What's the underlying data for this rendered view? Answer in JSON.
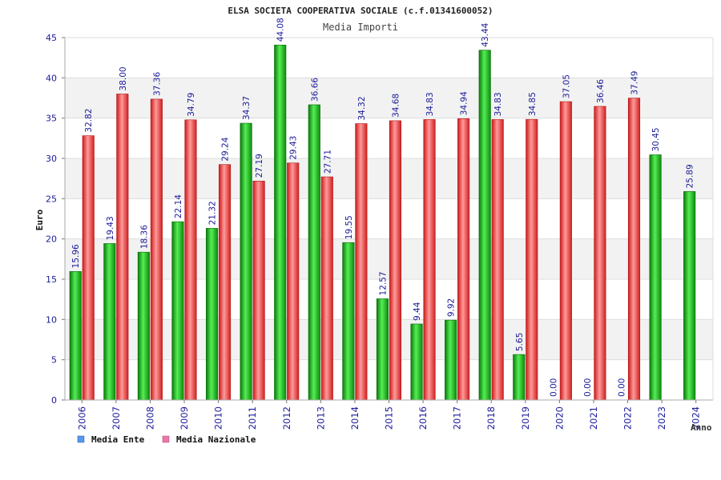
{
  "chart_data": {
    "type": "bar",
    "title": "ELSA SOCIETA COOPERATIVA SOCIALE (c.f.01341600052)",
    "subtitle": "Media Importi",
    "xlabel": "Anno",
    "ylabel": "Euro",
    "ylim": [
      0,
      45
    ],
    "yticks": [
      "0",
      "5",
      "10",
      "15",
      "20",
      "25",
      "30",
      "35",
      "40",
      "45"
    ],
    "grid": true,
    "legend_position": "bottom-left",
    "categories": [
      "2006",
      "2007",
      "2008",
      "2009",
      "2010",
      "2011",
      "2012",
      "2013",
      "2014",
      "2015",
      "2016",
      "2017",
      "2018",
      "2019",
      "2020",
      "2021",
      "2022",
      "2023",
      "2024"
    ],
    "series": [
      {
        "name": "Media Ente",
        "color": "#22bb22",
        "legend_color": "#5599ee",
        "values": [
          15.96,
          19.43,
          18.36,
          22.14,
          21.32,
          34.37,
          44.08,
          36.66,
          19.55,
          12.57,
          9.44,
          9.92,
          43.44,
          5.65,
          0,
          0,
          0,
          30.45,
          25.89
        ],
        "labels": [
          "15.96",
          "19.43",
          "18.36",
          "22.14",
          "21.32",
          "34.37",
          "44.08",
          "36.66",
          "19.55",
          "12.57",
          "9.44",
          "9.92",
          "43.44",
          "5.65",
          "0.00",
          "0.00",
          "0.00",
          "30.45",
          "25.89"
        ]
      },
      {
        "name": "Media Nazionale",
        "color": "#ee4444",
        "legend_color": "#ee77aa",
        "values": [
          32.82,
          38.0,
          37.36,
          34.79,
          29.24,
          27.19,
          29.43,
          27.71,
          34.32,
          34.68,
          34.83,
          34.94,
          34.83,
          34.85,
          37.05,
          36.46,
          37.49,
          null,
          null
        ],
        "labels": [
          "32.82",
          "38.00",
          "37.36",
          "34.79",
          "29.24",
          "27.19",
          "29.43",
          "27.71",
          "34.32",
          "34.68",
          "34.83",
          "34.94",
          "34.83",
          "34.85",
          "37.05",
          "36.46",
          "37.49",
          null,
          null
        ]
      }
    ]
  }
}
